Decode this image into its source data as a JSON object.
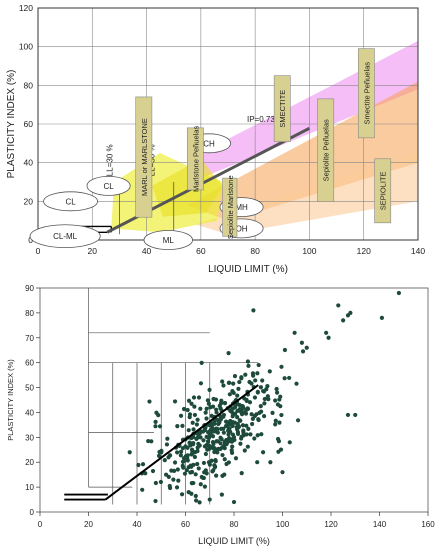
{
  "chart_data": [
    {
      "type": "line",
      "subtype": "plasticity-chart-annotated",
      "xlabel": "LIQUID LIMIT (%)",
      "ylabel": "PLASTICITY INDEX (%)",
      "xlim": [
        0,
        140
      ],
      "ylim": [
        0,
        120
      ],
      "xticks": [
        "0",
        "20",
        "40",
        "60",
        "80",
        "100",
        "120",
        "140"
      ],
      "yticks": [
        "0",
        "20",
        "40",
        "60",
        "80",
        "100",
        "120"
      ],
      "grid": true,
      "a_line": {
        "x": [
          25.5,
          100
        ],
        "y": [
          4,
          57.8
        ]
      },
      "equation_label": "IP=0.73(l",
      "vertical_labels": [
        "LL=30 %",
        "LL=50 %"
      ],
      "soil_labels": [
        "CL",
        "CL",
        "CL-ML",
        "ML",
        "CH",
        "MH",
        "OH"
      ],
      "boxed_labels": [
        "MARL or MARLSTONE",
        "Marlstone Peñuelas",
        "Sepiolite Marlstone",
        "SMECTITE",
        "Sepiolite Peñuelas",
        "Smectite Peñuelas",
        "SEPIOLITE"
      ],
      "colors": {
        "smectite_band": "#ee88ee",
        "sepiolite_band": "#f6a050",
        "marl_zone": "#ecec30",
        "label_box": "#d8d090",
        "a_line": "#555555"
      }
    },
    {
      "type": "scatter",
      "xlabel": "LIQUID LIMIT (%)",
      "ylabel": "PLASTICITY INDEX (%)",
      "xlim": [
        0,
        160
      ],
      "ylim": [
        0,
        90
      ],
      "xticks": [
        "0",
        "20",
        "40",
        "60",
        "80",
        "100",
        "120",
        "140",
        "160"
      ],
      "yticks": [
        "0",
        "10",
        "20",
        "30",
        "40",
        "50",
        "60",
        "70",
        "80",
        "90"
      ],
      "grid": false,
      "a_line": {
        "x": [
          27,
          90
        ],
        "y": [
          5,
          51
        ]
      },
      "color": "#1e4a3c",
      "outliers": [
        [
          139,
          95
        ],
        [
          148,
          88
        ],
        [
          141,
          78
        ],
        [
          123,
          83
        ],
        [
          125,
          77
        ],
        [
          118,
          72
        ],
        [
          119,
          70
        ],
        [
          127,
          79
        ],
        [
          128,
          80
        ],
        [
          130,
          39
        ],
        [
          127,
          39
        ],
        [
          88,
          81
        ],
        [
          108,
          68
        ],
        [
          105,
          72
        ],
        [
          110,
          66
        ],
        [
          37,
          24
        ],
        [
          50,
          24
        ],
        [
          52,
          15
        ],
        [
          53,
          22
        ],
        [
          55,
          13
        ],
        [
          70,
          5
        ],
        [
          75,
          7
        ],
        [
          80,
          4
        ],
        [
          95,
          20
        ],
        [
          92,
          24
        ],
        [
          100,
          16
        ],
        [
          103,
          28
        ],
        [
          57,
          27
        ]
      ],
      "cluster": {
        "count": 430,
        "mean_x": 74,
        "sd_x": 14,
        "mean_y": 33,
        "sd_y": 11
      }
    }
  ]
}
